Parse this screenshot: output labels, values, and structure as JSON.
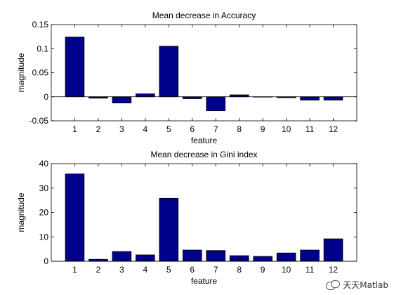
{
  "chart_data": [
    {
      "type": "bar",
      "title": "Mean decrease in Accuracy",
      "xlabel": "feature",
      "ylabel": "magnitude",
      "categories": [
        "1",
        "2",
        "3",
        "4",
        "5",
        "6",
        "7",
        "8",
        "9",
        "10",
        "11",
        "12"
      ],
      "values": [
        0.124,
        -0.003,
        -0.013,
        0.006,
        0.105,
        -0.004,
        -0.029,
        0.004,
        0.0,
        -0.002,
        -0.007,
        -0.007
      ],
      "ylim": [
        -0.05,
        0.15
      ],
      "yticks": [
        "0.15",
        "0.1",
        "0.05",
        "0",
        "-0.05"
      ],
      "ytick_values": [
        0.15,
        0.1,
        0.05,
        0,
        -0.05
      ],
      "xlim": [
        0,
        13
      ],
      "bar_color": "#00008B",
      "grid": false
    },
    {
      "type": "bar",
      "title": "Mean decrease in Gini index",
      "xlabel": "feature",
      "ylabel": "magnitude",
      "categories": [
        "1",
        "2",
        "3",
        "4",
        "5",
        "6",
        "7",
        "8",
        "9",
        "10",
        "11",
        "12"
      ],
      "values": [
        35.8,
        0.8,
        4.0,
        2.6,
        25.8,
        4.6,
        4.4,
        2.3,
        2.0,
        3.4,
        4.6,
        9.2
      ],
      "ylim": [
        0,
        40
      ],
      "yticks": [
        "40",
        "30",
        "20",
        "10",
        "0"
      ],
      "ytick_values": [
        40,
        30,
        20,
        10,
        0
      ],
      "xlim": [
        0,
        13
      ],
      "bar_color": "#00008B",
      "grid": false
    }
  ],
  "watermark": {
    "text": "天天Matlab",
    "icon": "wechat-icon"
  }
}
